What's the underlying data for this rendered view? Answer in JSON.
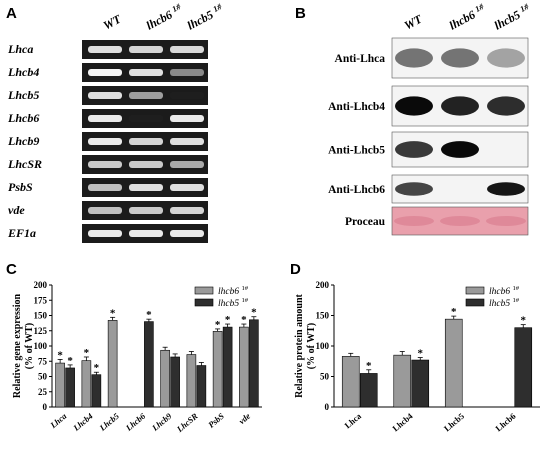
{
  "panels": {
    "A": {
      "label": "A",
      "columns": [
        "WT",
        "lhcb6 1#",
        "lhcb5 1#"
      ],
      "genes": [
        "Lhca",
        "Lhcb4",
        "Lhcb5",
        "Lhcb6",
        "Lhcb9",
        "LhcSR",
        "PsbS",
        "vde",
        "EF1a"
      ],
      "intensities": [
        [
          0.85,
          0.8,
          0.82
        ],
        [
          0.95,
          0.85,
          0.45
        ],
        [
          0.85,
          0.55,
          0.05
        ],
        [
          0.9,
          0.05,
          0.9
        ],
        [
          0.9,
          0.8,
          0.85
        ],
        [
          0.75,
          0.75,
          0.6
        ],
        [
          0.7,
          0.85,
          0.85
        ],
        [
          0.7,
          0.75,
          0.8
        ],
        [
          0.9,
          0.9,
          0.9
        ]
      ]
    },
    "B": {
      "label": "B",
      "columns": [
        "WT",
        "lhcb6 1#",
        "lhcb5 1#"
      ],
      "antibodies": [
        "Anti-Lhca",
        "Anti-Lhcb4",
        "Anti-Lhcb5",
        "Anti-Lhcb6",
        "Proceau"
      ],
      "intensities": [
        [
          0.55,
          0.55,
          0.35
        ],
        [
          1.0,
          0.9,
          0.85
        ],
        [
          0.8,
          1.0,
          0.0
        ],
        [
          0.75,
          0.0,
          0.95
        ],
        [
          0.6,
          0.6,
          0.6
        ]
      ],
      "ponceau_color": "#e9a0ac"
    },
    "C": {
      "label": "C",
      "chart_data": {
        "type": "bar",
        "categories": [
          "Lhca",
          "Lhcb4",
          "Lhcb5",
          "Lhcb6",
          "Lhcb9",
          "LhcSR",
          "PsbS",
          "vde"
        ],
        "series": [
          {
            "name": "lhcb6 1#",
            "values": [
              72,
              76,
              142,
              0,
              93,
              86,
              124,
              131
            ],
            "errors": [
              6,
              6,
              5,
              0,
              5,
              5,
              4,
              5
            ],
            "color": "#9a9a9a"
          },
          {
            "name": "lhcb5 1#",
            "values": [
              64,
              53,
              0,
              140,
              82,
              68,
              131,
              143
            ],
            "errors": [
              5,
              4,
              0,
              4,
              5,
              5,
              5,
              5
            ],
            "color": "#2e2e2e"
          }
        ],
        "significant": [
          [
            true,
            true,
            true,
            false,
            false,
            false,
            true,
            true
          ],
          [
            true,
            true,
            false,
            true,
            false,
            false,
            true,
            true
          ]
        ],
        "ylabel": "Relative gene expression\n(% of WT)",
        "ylim": [
          0,
          200
        ],
        "yticks": [
          "0",
          "25",
          "50",
          "75",
          "100",
          "125",
          "150",
          "175",
          "200"
        ],
        "legend": [
          "lhcb6 1#",
          "lhcb5 1#"
        ],
        "legend_position": "top-right",
        "star": "*"
      }
    },
    "D": {
      "label": "D",
      "chart_data": {
        "type": "bar",
        "categories": [
          "Lhca",
          "Lhcb4",
          "Lhcb5",
          "Lhcb6"
        ],
        "series": [
          {
            "name": "lhcb6 1#",
            "values": [
              83,
              85,
              144,
              0
            ],
            "errors": [
              5,
              6,
              5,
              0
            ],
            "color": "#9a9a9a"
          },
          {
            "name": "lhcb5 1#",
            "values": [
              55,
              77,
              0,
              130
            ],
            "errors": [
              6,
              4,
              0,
              5
            ],
            "color": "#2e2e2e"
          }
        ],
        "significant": [
          [
            false,
            false,
            true,
            false
          ],
          [
            true,
            true,
            false,
            true
          ]
        ],
        "ylabel": "Relative protein amount\n(% of WT)",
        "ylim": [
          0,
          200
        ],
        "yticks": [
          "0",
          "50",
          "100",
          "150",
          "200"
        ],
        "legend": [
          "lhcb6 1#",
          "lhcb5 1#"
        ],
        "legend_position": "top-right",
        "star": "*"
      }
    }
  }
}
